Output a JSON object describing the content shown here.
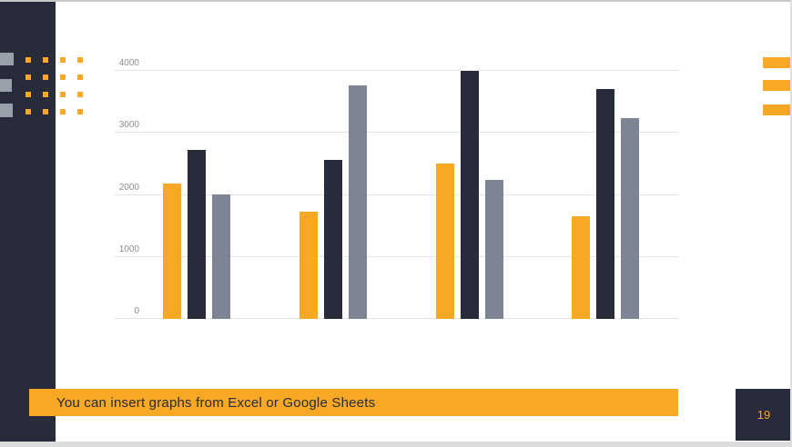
{
  "slide": {
    "banner": {
      "text": "You can insert graphs from Excel or Google Sheets",
      "bg_color": "#F9A825",
      "text_color": "#272B3A"
    },
    "page_number": "19",
    "colors": {
      "accent_orange": "#F9A825",
      "dark_navy": "#272B3A",
      "slate_gray": "#7D8493",
      "left_mark_gray": "#99A0AB",
      "gridline": "#E5E5E7",
      "axis_label": "#8B8B93"
    }
  },
  "chart_data": {
    "type": "bar",
    "title": "",
    "xlabel": "",
    "ylabel": "",
    "categories": [
      "",
      "",
      "",
      ""
    ],
    "series": [
      {
        "name": "orange",
        "color": "#F9A825",
        "values": [
          2190,
          1730,
          2510,
          1650
        ]
      },
      {
        "name": "dark-navy",
        "color": "#272B3A",
        "values": [
          2730,
          2570,
          4000,
          3700
        ]
      },
      {
        "name": "slate-gray",
        "color": "#7D8493",
        "values": [
          2010,
          3770,
          2240,
          3240
        ]
      }
    ],
    "ylim": [
      0,
      4000
    ],
    "yticks": [
      0,
      1000,
      2000,
      3000,
      4000
    ],
    "grid": "horizontal",
    "legend": "none"
  }
}
